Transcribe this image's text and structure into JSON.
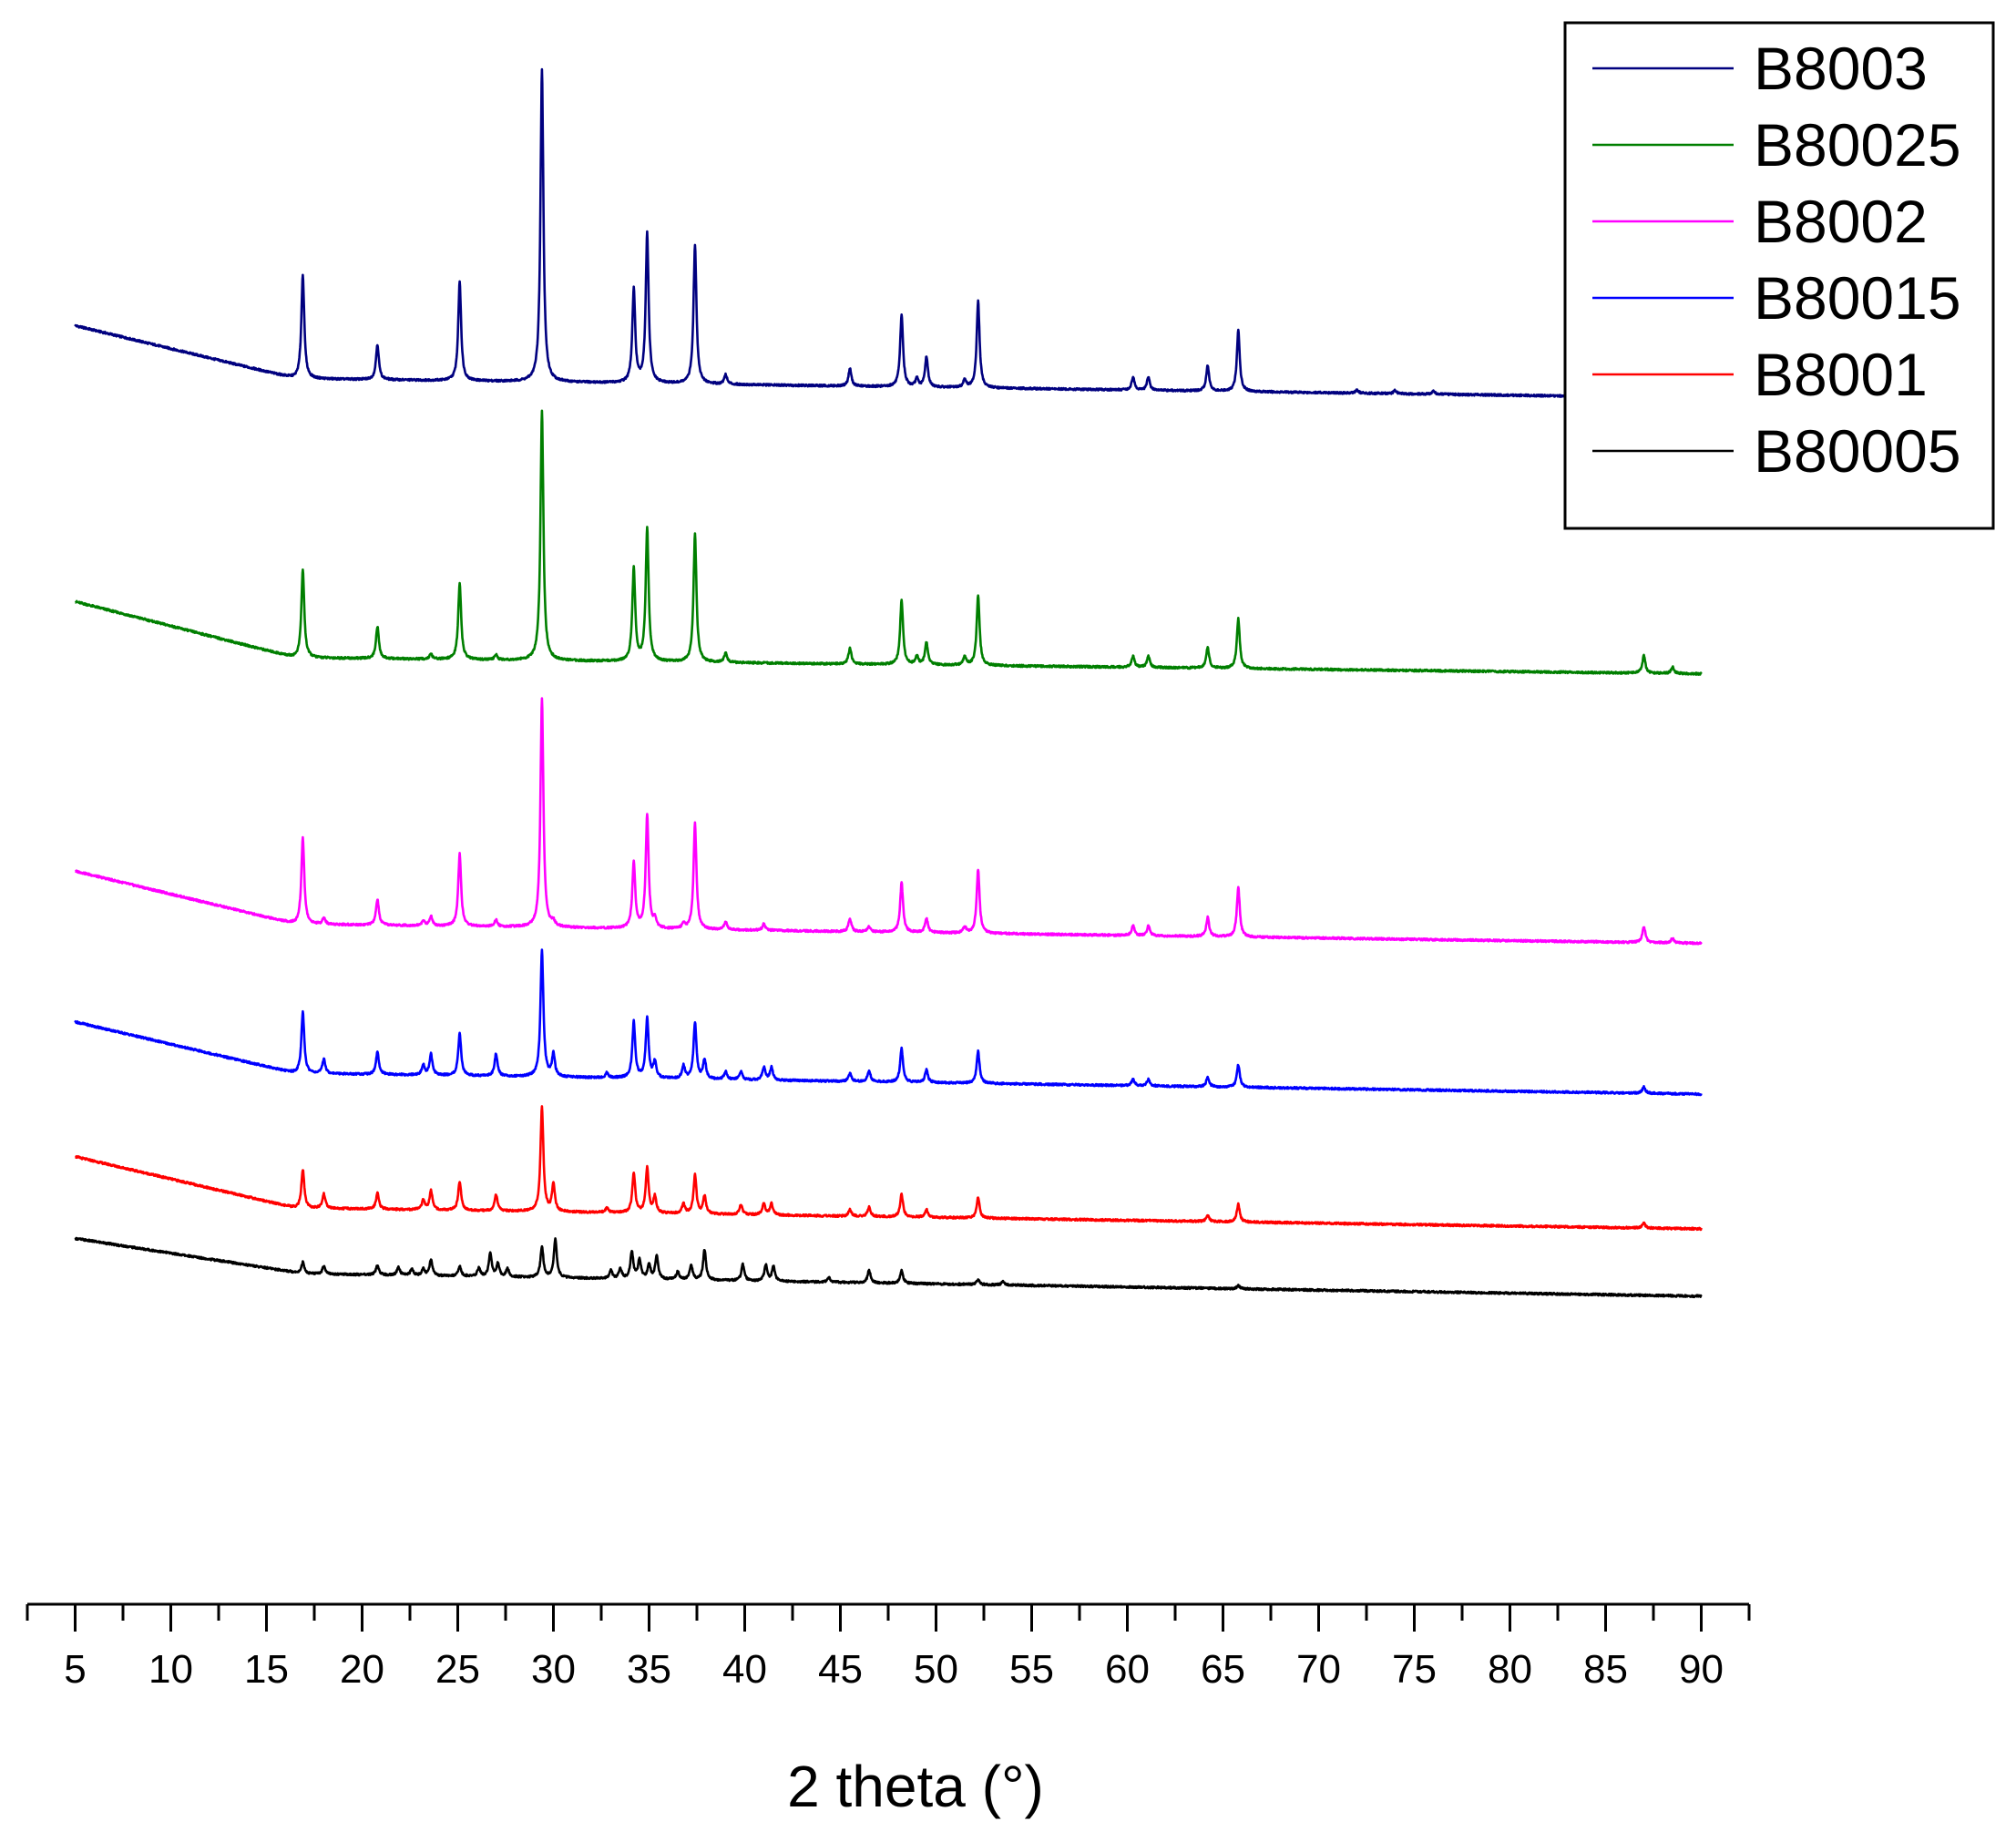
{
  "chart_data": {
    "type": "line",
    "title": "",
    "xlabel": "2 theta (°)",
    "ylabel": "",
    "xlim": [
      2.5,
      92.5
    ],
    "ylim": [
      0,
      1000
    ],
    "x_ticks": [
      5,
      10,
      15,
      20,
      25,
      30,
      35,
      40,
      45,
      50,
      55,
      60,
      65,
      70,
      75,
      80,
      85,
      90
    ],
    "x_tick_labels": [
      "5",
      "10",
      "15",
      "20",
      "25",
      "30",
      "35",
      "40",
      "45",
      "50",
      "55",
      "60",
      "65",
      "70",
      "75",
      "80",
      "85",
      "90"
    ],
    "x_minor_step": 2.5,
    "grid": false,
    "legend_position": "top-right",
    "y_axis_visible": false,
    "series": [
      {
        "name": "B8003",
        "color": "#00007F",
        "baseline_start": 797,
        "baseline_end": 752,
        "baseline_knee": 16.5,
        "baseline_knee_value": 764,
        "peaks": [
          [
            16.9,
            65
          ],
          [
            20.8,
            22
          ],
          [
            25.1,
            62
          ],
          [
            29.4,
            195
          ],
          [
            34.2,
            58
          ],
          [
            34.9,
            93
          ],
          [
            37.4,
            87
          ],
          [
            39.0,
            6
          ],
          [
            45.5,
            11
          ],
          [
            48.2,
            45
          ],
          [
            49.0,
            5
          ],
          [
            49.5,
            19
          ],
          [
            51.5,
            5
          ],
          [
            52.2,
            54
          ],
          [
            60.3,
            8
          ],
          [
            61.1,
            8
          ],
          [
            64.2,
            16
          ],
          [
            65.8,
            38
          ],
          [
            72.0,
            2
          ],
          [
            74.0,
            2
          ],
          [
            76.0,
            2
          ],
          [
            87.0,
            15
          ],
          [
            87.4,
            6
          ],
          [
            88.5,
            4
          ]
        ]
      },
      {
        "name": "B80025",
        "color": "#007F00",
        "baseline_start": 625,
        "baseline_end": 580,
        "baseline_knee": 16.5,
        "baseline_knee_value": 590,
        "peaks": [
          [
            16.9,
            55
          ],
          [
            20.8,
            20
          ],
          [
            23.6,
            3
          ],
          [
            25.1,
            48
          ],
          [
            27.0,
            3
          ],
          [
            29.4,
            156
          ],
          [
            34.2,
            58
          ],
          [
            34.9,
            83
          ],
          [
            37.4,
            80
          ],
          [
            39.0,
            6
          ],
          [
            45.5,
            10
          ],
          [
            48.2,
            40
          ],
          [
            49.0,
            5
          ],
          [
            49.5,
            14
          ],
          [
            51.5,
            5
          ],
          [
            52.2,
            44
          ],
          [
            60.3,
            7
          ],
          [
            61.1,
            7
          ],
          [
            64.2,
            13
          ],
          [
            65.8,
            31
          ],
          [
            87.0,
            11
          ],
          [
            88.5,
            4
          ]
        ]
      },
      {
        "name": "B8002",
        "color": "#FF00FF",
        "baseline_start": 457,
        "baseline_end": 412,
        "baseline_knee": 16.5,
        "baseline_knee_value": 424,
        "peaks": [
          [
            16.9,
            54
          ],
          [
            18.0,
            4
          ],
          [
            20.8,
            16
          ],
          [
            23.2,
            3
          ],
          [
            23.6,
            6
          ],
          [
            25.1,
            45
          ],
          [
            27.0,
            4
          ],
          [
            29.4,
            143
          ],
          [
            30.0,
            3
          ],
          [
            34.2,
            41
          ],
          [
            34.9,
            71
          ],
          [
            35.3,
            5
          ],
          [
            36.8,
            3
          ],
          [
            37.4,
            66
          ],
          [
            39.0,
            5
          ],
          [
            41.0,
            4
          ],
          [
            45.5,
            8
          ],
          [
            46.5,
            3
          ],
          [
            48.2,
            31
          ],
          [
            49.5,
            9
          ],
          [
            51.5,
            4
          ],
          [
            52.2,
            40
          ],
          [
            60.3,
            6
          ],
          [
            61.1,
            6
          ],
          [
            64.2,
            12
          ],
          [
            65.8,
            31
          ],
          [
            87.0,
            10
          ],
          [
            88.5,
            3
          ]
        ]
      },
      {
        "name": "B80015",
        "color": "#0000FF",
        "baseline_start": 363,
        "baseline_end": 318,
        "baseline_knee": 16.5,
        "baseline_knee_value": 331,
        "peaks": [
          [
            16.9,
            38
          ],
          [
            18.0,
            9
          ],
          [
            20.8,
            14
          ],
          [
            23.2,
            6
          ],
          [
            23.6,
            13
          ],
          [
            25.1,
            26
          ],
          [
            27.0,
            14
          ],
          [
            29.4,
            79
          ],
          [
            30.0,
            14
          ],
          [
            32.8,
            3
          ],
          [
            34.2,
            35
          ],
          [
            34.9,
            37
          ],
          [
            35.3,
            10
          ],
          [
            36.8,
            8
          ],
          [
            37.4,
            35
          ],
          [
            37.9,
            12
          ],
          [
            39.0,
            5
          ],
          [
            39.8,
            5
          ],
          [
            41.0,
            8
          ],
          [
            41.4,
            8
          ],
          [
            45.5,
            5
          ],
          [
            46.5,
            7
          ],
          [
            48.2,
            21
          ],
          [
            49.5,
            8
          ],
          [
            52.2,
            20
          ],
          [
            60.3,
            4
          ],
          [
            61.1,
            4
          ],
          [
            64.2,
            6
          ],
          [
            65.8,
            14
          ],
          [
            87.0,
            4
          ]
        ]
      },
      {
        "name": "B8001",
        "color": "#FF0000",
        "baseline_start": 279,
        "baseline_end": 234,
        "baseline_knee": 16.5,
        "baseline_knee_value": 247,
        "peaks": [
          [
            16.9,
            24
          ],
          [
            18.0,
            9
          ],
          [
            20.8,
            10
          ],
          [
            23.2,
            6
          ],
          [
            23.6,
            12
          ],
          [
            25.1,
            18
          ],
          [
            27.0,
            10
          ],
          [
            29.4,
            65
          ],
          [
            30.0,
            17
          ],
          [
            32.8,
            3
          ],
          [
            34.2,
            25
          ],
          [
            34.9,
            28
          ],
          [
            35.3,
            10
          ],
          [
            36.8,
            6
          ],
          [
            37.4,
            24
          ],
          [
            37.9,
            11
          ],
          [
            39.8,
            6
          ],
          [
            41.0,
            7
          ],
          [
            41.4,
            7
          ],
          [
            45.5,
            4
          ],
          [
            46.5,
            6
          ],
          [
            48.2,
            14
          ],
          [
            49.5,
            5
          ],
          [
            52.2,
            13
          ],
          [
            64.2,
            4
          ],
          [
            65.8,
            11
          ],
          [
            87.0,
            3
          ]
        ]
      },
      {
        "name": "B80005",
        "color": "#000000",
        "baseline_start": 228,
        "baseline_end": 192,
        "baseline_knee": 17.0,
        "baseline_knee_value": 206,
        "peaks": [
          [
            16.9,
            7
          ],
          [
            18.0,
            5
          ],
          [
            20.8,
            6
          ],
          [
            21.9,
            5
          ],
          [
            22.6,
            4
          ],
          [
            23.2,
            4
          ],
          [
            23.6,
            10
          ],
          [
            25.1,
            6
          ],
          [
            26.1,
            5
          ],
          [
            26.7,
            15
          ],
          [
            27.1,
            8
          ],
          [
            27.6,
            5
          ],
          [
            29.4,
            19
          ],
          [
            30.1,
            24
          ],
          [
            33.0,
            5
          ],
          [
            33.5,
            6
          ],
          [
            34.1,
            17
          ],
          [
            34.5,
            12
          ],
          [
            35.0,
            9
          ],
          [
            35.4,
            15
          ],
          [
            36.5,
            5
          ],
          [
            37.2,
            9
          ],
          [
            37.9,
            19
          ],
          [
            39.9,
            10
          ],
          [
            41.1,
            10
          ],
          [
            41.5,
            9
          ],
          [
            44.4,
            3
          ],
          [
            46.5,
            8
          ],
          [
            48.2,
            8
          ],
          [
            52.2,
            3
          ],
          [
            53.5,
            2
          ],
          [
            65.8,
            2
          ]
        ]
      }
    ]
  }
}
